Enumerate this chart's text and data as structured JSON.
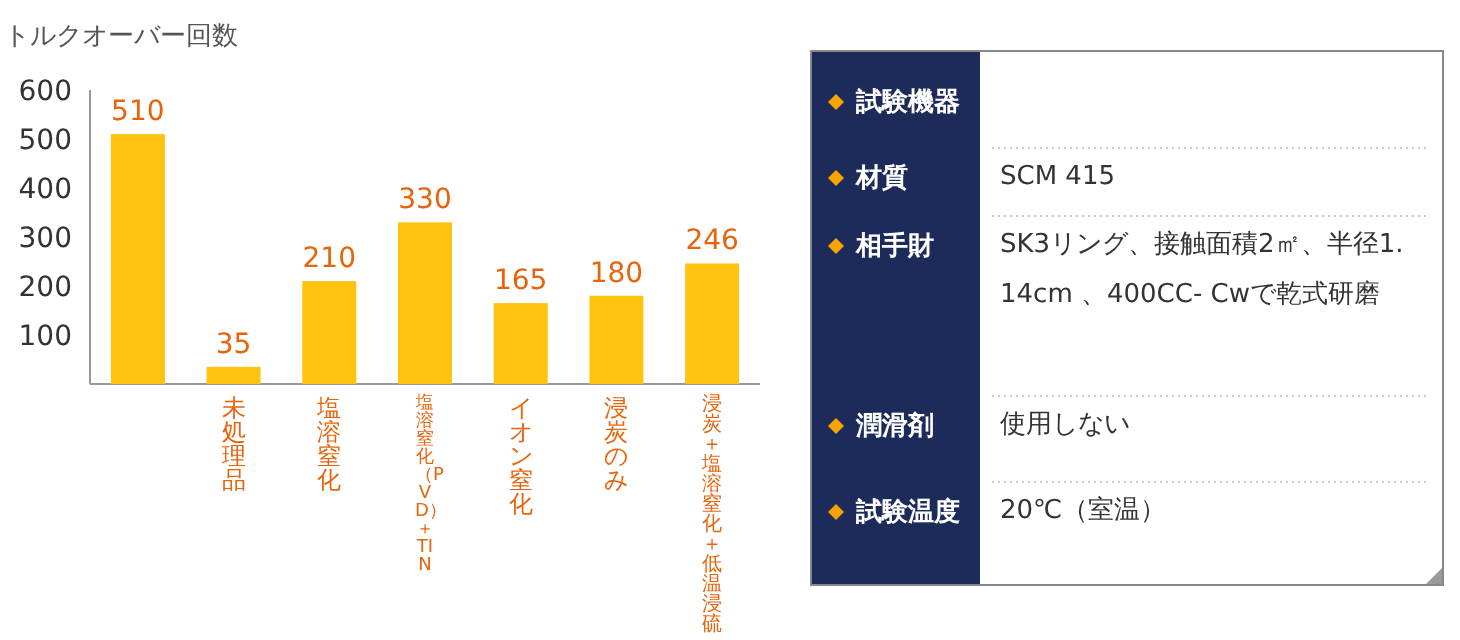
{
  "chart_data": [
    {
      "type": "bar",
      "ylabel": "トルクオーバー回数",
      "categories": [
        null,
        "未処理品",
        "塩溶窒化",
        "塩溶窒化（PVD）＋TIN",
        "イオン窒化",
        "浸炭のみ",
        "浸炭＋塩溶窒化＋低温浸硫"
      ],
      "values": [
        510,
        35,
        210,
        330,
        165,
        180,
        246
      ],
      "color": "#ffc20e",
      "data_labels": true,
      "ylim": [
        0,
        600
      ],
      "yticks": [
        100,
        200,
        300,
        400,
        500,
        600
      ]
    },
    {
      "type": "other",
      "categories": [
        "試験機器",
        "材質",
        "相手財",
        "潤滑剤",
        "試験温度"
      ],
      "value_labels": [
        null,
        "SCM 415",
        "SK3リング、接触面積2㎡、半径1. 14cm 、400CC- Cwで乾式研磨",
        "使用しない",
        "20℃（室温）"
      ]
    }
  ]
}
